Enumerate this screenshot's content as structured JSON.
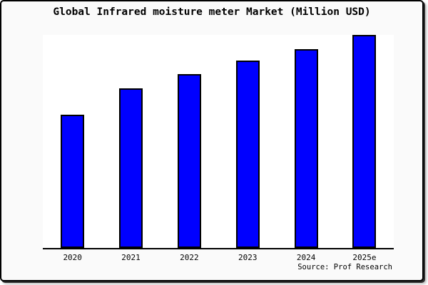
{
  "window": {
    "background_color": "#fafafa",
    "plot_background_color": "#ffffff",
    "border_color": "#000000"
  },
  "header": {
    "title": "Global Infrared moisture meter Market (Million USD)"
  },
  "footer": {
    "source_label": "Source: Prof Research"
  },
  "chart_data": {
    "type": "bar",
    "title": "Global Infrared moisture meter Market (Million USD)",
    "categories": [
      "2020",
      "2021",
      "2022",
      "2023",
      "2024",
      "2025e"
    ],
    "values": [
      62.7,
      75.0,
      81.7,
      88.0,
      93.3,
      100.0
    ],
    "value_unit": "percent_of_tallest_bar_estimated",
    "xlabel": "",
    "ylabel": "",
    "ylim": [
      0,
      100
    ],
    "y_axis_shown": false,
    "grid": false,
    "legend": false,
    "bar_color": "#0000ff",
    "bar_border_color": "#000000",
    "source": "Source: Prof Research"
  }
}
